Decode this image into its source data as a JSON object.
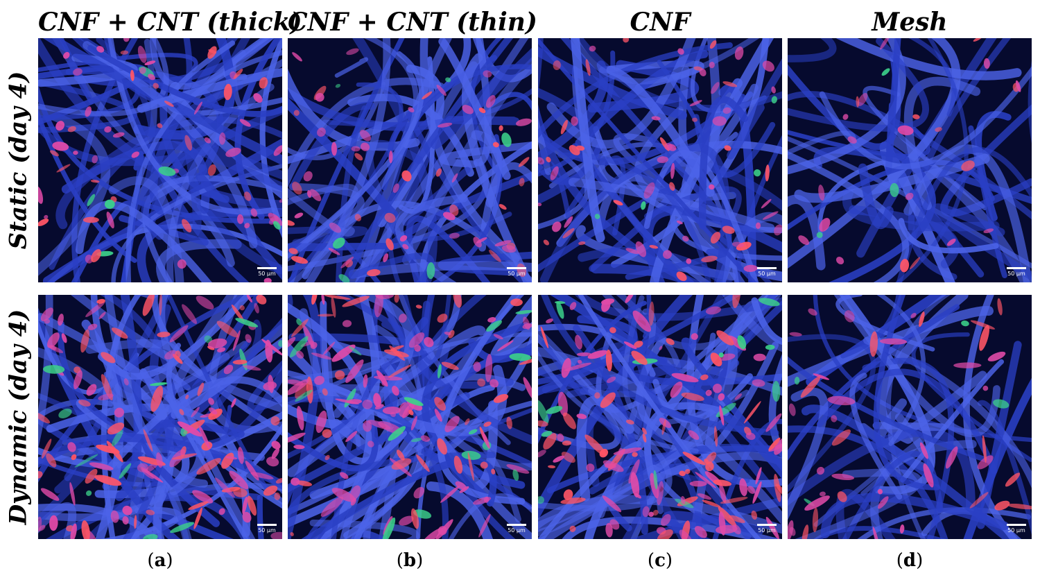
{
  "columns": [
    {
      "title": "CNF + CNT (thick)",
      "label": "a"
    },
    {
      "title": "CNF + CNT (thin)",
      "label": "b"
    },
    {
      "title": "CNF",
      "label": "c"
    },
    {
      "title": "Mesh",
      "label": "d"
    }
  ],
  "rows": [
    {
      "title": "Static (day 4)"
    },
    {
      "title": "Dynamic (day 4)"
    }
  ],
  "scale_bar": "50 μm",
  "colors": {
    "background": "#060a2e",
    "fiber": "#2a3fc4",
    "fiber_light": "#4c63e8",
    "cell_magenta": "#e04aa8",
    "cell_red": "#ff5566",
    "cell_green": "#3cd08a"
  }
}
